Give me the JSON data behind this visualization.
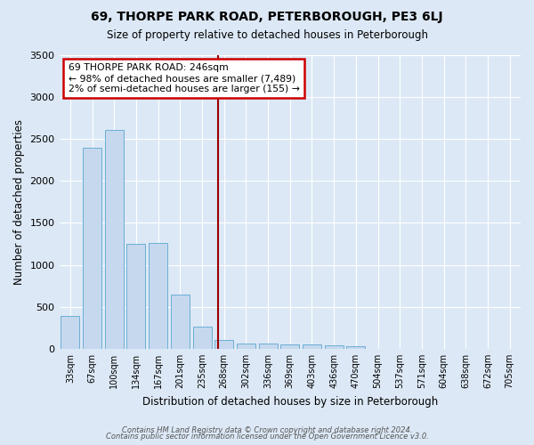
{
  "title1": "69, THORPE PARK ROAD, PETERBOROUGH, PE3 6LJ",
  "title2": "Size of property relative to detached houses in Peterborough",
  "xlabel": "Distribution of detached houses by size in Peterborough",
  "ylabel": "Number of detached properties",
  "footer1": "Contains HM Land Registry data © Crown copyright and database right 2024.",
  "footer2": "Contains public sector information licensed under the Open Government Licence v3.0.",
  "bar_labels": [
    "33sqm",
    "67sqm",
    "100sqm",
    "134sqm",
    "167sqm",
    "201sqm",
    "235sqm",
    "268sqm",
    "302sqm",
    "336sqm",
    "369sqm",
    "403sqm",
    "436sqm",
    "470sqm",
    "504sqm",
    "537sqm",
    "571sqm",
    "604sqm",
    "638sqm",
    "672sqm",
    "705sqm"
  ],
  "bar_values": [
    390,
    2390,
    2600,
    1250,
    1260,
    650,
    260,
    110,
    65,
    60,
    55,
    48,
    42,
    35,
    0,
    0,
    0,
    0,
    0,
    0,
    0
  ],
  "bar_color": "#c5d8ee",
  "bar_edge_color": "#6baed6",
  "background_color": "#dce8f5",
  "grid_color": "#ffffff",
  "vline_color": "#990000",
  "annotation_text": "69 THORPE PARK ROAD: 246sqm\n← 98% of detached houses are smaller (7,489)\n2% of semi-detached houses are larger (155) →",
  "annotation_box_color": "#ffffff",
  "annotation_box_edge": "#cc0000",
  "ylim": [
    0,
    3500
  ],
  "yticks": [
    0,
    500,
    1000,
    1500,
    2000,
    2500,
    3000,
    3500
  ],
  "vline_pos": 6.72
}
